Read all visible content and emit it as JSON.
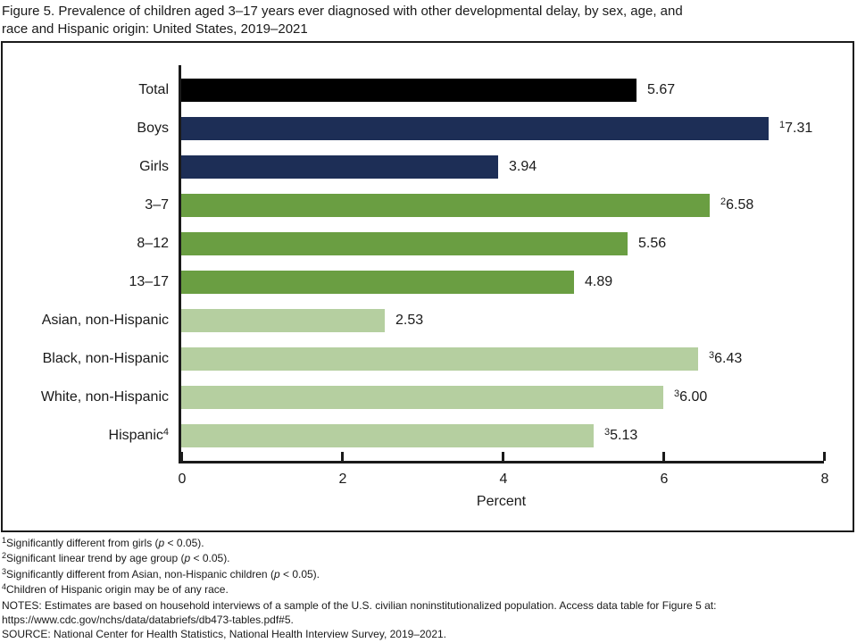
{
  "page": {
    "title_lines": [
      "Figure 5. Prevalence of children aged 3–17 years ever diagnosed with other developmental delay, by sex, age, and",
      "race and Hispanic origin: United States, 2019–2021"
    ]
  },
  "chart_data": {
    "type": "bar",
    "orientation": "horizontal",
    "title": "Figure 5. Prevalence of children aged 3–17 years ever diagnosed with other developmental delay, by sex, age, and race and Hispanic origin: United States, 2019–2021",
    "xlabel": "Percent",
    "xlim": [
      0,
      8
    ],
    "xticks": [
      0,
      2,
      4,
      6,
      8
    ],
    "grid": false,
    "legend": "none",
    "categories": [
      "Total",
      "Boys",
      "Girls",
      "3–7",
      "8–12",
      "13–17",
      "Asian, non-Hispanic",
      "Black, non-Hispanic",
      "White, non-Hispanic",
      "Hispanic"
    ],
    "values": [
      5.67,
      7.31,
      3.94,
      6.58,
      5.56,
      4.89,
      2.53,
      6.43,
      6.0,
      5.13
    ],
    "bars": [
      {
        "label": "Total",
        "label_sup": "",
        "value": 5.67,
        "display": "5.67",
        "value_sup": "",
        "color": "#000000"
      },
      {
        "label": "Boys",
        "label_sup": "",
        "value": 7.31,
        "display": "7.31",
        "value_sup": "1",
        "color": "#1d2e56"
      },
      {
        "label": "Girls",
        "label_sup": "",
        "value": 3.94,
        "display": "3.94",
        "value_sup": "",
        "color": "#1d2e56"
      },
      {
        "label": "3–7",
        "label_sup": "",
        "value": 6.58,
        "display": "6.58",
        "value_sup": "2",
        "color": "#6a9e42"
      },
      {
        "label": "8–12",
        "label_sup": "",
        "value": 5.56,
        "display": "5.56",
        "value_sup": "",
        "color": "#6a9e42"
      },
      {
        "label": "13–17",
        "label_sup": "",
        "value": 4.89,
        "display": "4.89",
        "value_sup": "",
        "color": "#6a9e42"
      },
      {
        "label": "Asian, non-Hispanic",
        "label_sup": "",
        "value": 2.53,
        "display": "2.53",
        "value_sup": "",
        "color": "#b5cfa0"
      },
      {
        "label": "Black, non-Hispanic",
        "label_sup": "",
        "value": 6.43,
        "display": "6.43",
        "value_sup": "3",
        "color": "#b5cfa0"
      },
      {
        "label": "White, non-Hispanic",
        "label_sup": "",
        "value": 6.0,
        "display": "6.00",
        "value_sup": "3",
        "color": "#b5cfa0"
      },
      {
        "label": "Hispanic",
        "label_sup": "4",
        "value": 5.13,
        "display": "5.13",
        "value_sup": "3",
        "color": "#b5cfa0"
      }
    ],
    "colors": {
      "total": "#000000",
      "sex": "#1d2e56",
      "age": "#6a9e42",
      "race_ethnicity": "#b5cfa0"
    }
  },
  "footnotes": [
    {
      "sup": "1",
      "parts": [
        {
          "t": "Significantly different from girls ("
        },
        {
          "t": "p",
          "i": true
        },
        {
          "t": " < 0.05)."
        }
      ]
    },
    {
      "sup": "2",
      "parts": [
        {
          "t": "Significant linear trend by age group ("
        },
        {
          "t": "p",
          "i": true
        },
        {
          "t": " < 0.05)."
        }
      ]
    },
    {
      "sup": "3",
      "parts": [
        {
          "t": "Significantly different from Asian, non-Hispanic children ("
        },
        {
          "t": "p",
          "i": true
        },
        {
          "t": " < 0.05)."
        }
      ]
    },
    {
      "sup": "4",
      "parts": [
        {
          "t": "Children of Hispanic origin may be of any race."
        }
      ]
    },
    {
      "sup": "",
      "parts": [
        {
          "t": "NOTES: Estimates are based on household interviews of a sample of the U.S. civilian noninstitutionalized population. Access data table for Figure 5 at:"
        }
      ]
    },
    {
      "sup": "",
      "parts": [
        {
          "t": "https://www.cdc.gov/nchs/data/databriefs/db473-tables.pdf#5."
        }
      ]
    },
    {
      "sup": "",
      "parts": [
        {
          "t": "SOURCE: National Center for Health Statistics, National Health Interview Survey, 2019–2021."
        }
      ]
    }
  ]
}
